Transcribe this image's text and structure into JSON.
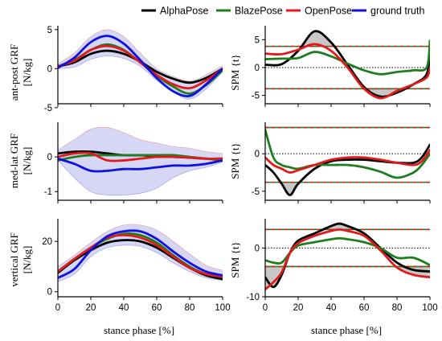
{
  "legend": [
    {
      "name": "AlphaPose",
      "color": "#000000"
    },
    {
      "name": "BlazePose",
      "color": "#1e7d1e"
    },
    {
      "name": "OpenPose",
      "color": "#e31a1c"
    },
    {
      "name": "ground truth",
      "color": "#1010e0"
    }
  ],
  "colors": {
    "alphapose": "#000000",
    "blazepose": "#1e7d1e",
    "openpose": "#e31a1c",
    "ground_truth": "#1010e0",
    "band": "#c8c8f2",
    "threshold_dash_1": "#1e7d1e",
    "threshold_dash_2": "#e31a1c",
    "zero_line": "#000000",
    "spm_fill": "#c8c8c8"
  },
  "xlabel": "stance phase [%]",
  "chart_data": [
    {
      "type": "line",
      "panel": "ant-post GRF",
      "ylabel_lines": [
        "ant-post GRF",
        "[N/kg]"
      ],
      "xlim": [
        0,
        100
      ],
      "ylim": [
        -4.5,
        5.5
      ],
      "xticks": [
        0,
        20,
        40,
        60,
        80,
        100
      ],
      "yticks": [
        -5,
        0,
        5
      ],
      "x": [
        0,
        10,
        20,
        30,
        40,
        50,
        60,
        70,
        80,
        90,
        100
      ],
      "series": [
        {
          "name": "AlphaPose",
          "values": [
            0.3,
            0.8,
            1.9,
            2.3,
            1.9,
            0.9,
            -0.4,
            -1.3,
            -1.8,
            -1.2,
            0
          ]
        },
        {
          "name": "BlazePose",
          "values": [
            0.3,
            1.1,
            2.4,
            3.1,
            2.4,
            0.8,
            -0.9,
            -2.3,
            -3.2,
            -2.1,
            -0.2
          ]
        },
        {
          "name": "OpenPose",
          "values": [
            0.3,
            1.0,
            2.4,
            2.9,
            2.3,
            0.8,
            -0.8,
            -2.0,
            -2.5,
            -1.5,
            0
          ]
        },
        {
          "name": "ground truth",
          "values": [
            0.1,
            1.4,
            3.4,
            4.2,
            3.2,
            1.1,
            -1.2,
            -2.9,
            -3.5,
            -2.0,
            0
          ]
        }
      ],
      "band": {
        "lower": [
          0.0,
          0.2,
          1.2,
          1.6,
          1.3,
          0.3,
          -1.5,
          -3.0,
          -3.9,
          -2.6,
          -0.4
        ],
        "upper": [
          0.6,
          2.0,
          4.1,
          5.0,
          4.1,
          2.0,
          0.0,
          -1.0,
          -1.6,
          -0.8,
          0.4
        ]
      }
    },
    {
      "type": "line",
      "panel": "SPM ant-post",
      "ylabel": "SPM {t}",
      "xlim": [
        0,
        100
      ],
      "ylim": [
        -6.5,
        7.5
      ],
      "xticks": [
        0,
        20,
        40,
        60,
        80,
        100
      ],
      "yticks": [
        -5,
        0,
        5
      ],
      "thresholds": [
        3.8,
        -3.8
      ],
      "x": [
        0,
        10,
        20,
        30,
        40,
        50,
        60,
        70,
        80,
        90,
        98,
        100
      ],
      "series": [
        {
          "name": "AlphaPose",
          "values": [
            0.5,
            0.6,
            3.0,
            6.5,
            4.5,
            0.5,
            -3.5,
            -5.2,
            -4.5,
            -3.0,
            -1.2,
            3.0
          ]
        },
        {
          "name": "BlazePose",
          "values": [
            1.5,
            1.6,
            1.7,
            2.8,
            2.0,
            0.7,
            -0.5,
            -1.2,
            -0.8,
            -0.5,
            0,
            4.8
          ]
        },
        {
          "name": "OpenPose",
          "values": [
            2.5,
            2.4,
            3.2,
            4.2,
            3.0,
            0,
            -3.8,
            -5.5,
            -4.2,
            -3.0,
            -1.8,
            0
          ]
        }
      ]
    },
    {
      "type": "line",
      "panel": "med-lat GRF",
      "ylabel_lines": [
        "med-lat GRF",
        "[N/kg]"
      ],
      "xlim": [
        0,
        100
      ],
      "ylim": [
        -1.25,
        1.0
      ],
      "xticks": [
        0,
        20,
        40,
        60,
        80,
        100
      ],
      "yticks": [
        -1,
        0
      ],
      "x": [
        0,
        10,
        20,
        30,
        40,
        50,
        60,
        70,
        80,
        90,
        100
      ],
      "series": [
        {
          "name": "AlphaPose",
          "values": [
            0.1,
            0.15,
            0.15,
            0.1,
            0.05,
            0.05,
            0.02,
            0.0,
            -0.02,
            -0.05,
            -0.05
          ]
        },
        {
          "name": "BlazePose",
          "values": [
            -0.1,
            0.0,
            0.05,
            0.05,
            0.05,
            0.05,
            0.05,
            0.05,
            0.0,
            -0.05,
            -0.1
          ]
        },
        {
          "name": "OpenPose",
          "values": [
            0.0,
            0.1,
            0.1,
            -0.1,
            -0.1,
            -0.05,
            0.0,
            0.0,
            -0.02,
            -0.05,
            -0.05
          ]
        },
        {
          "name": "ground truth",
          "values": [
            -0.05,
            -0.2,
            -0.4,
            -0.4,
            -0.35,
            -0.35,
            -0.3,
            -0.25,
            -0.25,
            -0.2,
            -0.1
          ]
        }
      ],
      "band": {
        "lower": [
          -0.1,
          -0.6,
          -1.0,
          -1.1,
          -1.1,
          -1.05,
          -0.9,
          -0.6,
          -0.4,
          -0.3,
          -0.15
        ],
        "upper": [
          0.2,
          0.5,
          0.8,
          0.85,
          0.7,
          0.5,
          0.4,
          0.3,
          0.25,
          0.15,
          0.1
        ]
      }
    },
    {
      "type": "line",
      "panel": "SPM med-lat",
      "ylabel": "SPM {t}",
      "xlim": [
        0,
        100
      ],
      "ylim": [
        -6.2,
        4.2
      ],
      "xticks": [
        0,
        20,
        40,
        60,
        80,
        100
      ],
      "yticks": [
        -5,
        0
      ],
      "thresholds": [
        3.5,
        -3.8
      ],
      "x": [
        0,
        5,
        10,
        15,
        20,
        30,
        40,
        50,
        60,
        70,
        80,
        90,
        95,
        100
      ],
      "series": [
        {
          "name": "AlphaPose",
          "values": [
            -1.5,
            -2.5,
            -4.0,
            -5.5,
            -4.0,
            -2.0,
            -1.0,
            -0.8,
            -0.8,
            -1.0,
            -1.2,
            -1.2,
            -0.5,
            1.2
          ]
        },
        {
          "name": "BlazePose",
          "values": [
            3.2,
            -0.5,
            -1.5,
            -1.8,
            -2.0,
            -1.5,
            -1.5,
            -1.5,
            -1.8,
            -2.4,
            -3.2,
            -2.5,
            -1.5,
            0
          ]
        },
        {
          "name": "OpenPose",
          "values": [
            -0.5,
            -1.5,
            -2.0,
            -2.5,
            -2.2,
            -1.5,
            -0.8,
            -0.5,
            -0.5,
            -0.8,
            -1.2,
            -1.5,
            -1.0,
            0.5
          ]
        }
      ]
    },
    {
      "type": "line",
      "panel": "vertical GRF",
      "ylabel_lines": [
        "vertical GRF",
        "[N/kg]"
      ],
      "xlim": [
        0,
        100
      ],
      "ylim": [
        -2,
        29
      ],
      "xticks": [
        0,
        20,
        40,
        60,
        80,
        100
      ],
      "yticks": [
        0,
        20
      ],
      "x": [
        0,
        10,
        20,
        30,
        40,
        50,
        60,
        70,
        80,
        90,
        100
      ],
      "series": [
        {
          "name": "AlphaPose",
          "values": [
            7.5,
            12.5,
            16.5,
            19.5,
            20.5,
            20.0,
            17.5,
            13.5,
            9.5,
            6.5,
            5.0
          ]
        },
        {
          "name": "BlazePose",
          "values": [
            8.0,
            13.0,
            17.5,
            21.0,
            23.0,
            22.5,
            19.5,
            14.5,
            10.0,
            7.0,
            6.0
          ]
        },
        {
          "name": "OpenPose",
          "values": [
            8.0,
            13.0,
            17.5,
            21.5,
            22.5,
            21.5,
            18.5,
            14.0,
            9.5,
            7.0,
            6.0
          ]
        },
        {
          "name": "ground truth",
          "values": [
            5.5,
            9.0,
            16.5,
            22.0,
            24.0,
            24.0,
            21.0,
            16.0,
            11.5,
            8.0,
            6.5
          ]
        }
      ],
      "band": {
        "lower": [
          4.0,
          7.0,
          14.0,
          17.5,
          18.5,
          18.0,
          15.5,
          11.5,
          8.0,
          5.5,
          4.5
        ],
        "upper": [
          10.0,
          14.5,
          19.5,
          24.0,
          26.5,
          26.5,
          24.5,
          20.0,
          15.0,
          10.5,
          8.5
        ]
      }
    },
    {
      "type": "line",
      "panel": "SPM vertical",
      "ylabel": "SPM {t}",
      "xlim": [
        0,
        100
      ],
      "ylim": [
        -10,
        6
      ],
      "xticks": [
        0,
        20,
        40,
        60,
        80,
        100
      ],
      "yticks": [
        -10,
        0
      ],
      "thresholds": [
        3.8,
        -3.8
      ],
      "x": [
        0,
        5,
        10,
        15,
        20,
        30,
        40,
        45,
        50,
        60,
        70,
        80,
        90,
        100
      ],
      "series": [
        {
          "name": "AlphaPose",
          "values": [
            -6.0,
            -8.0,
            -5.5,
            -1.0,
            1.5,
            3.0,
            4.5,
            5.0,
            4.5,
            3.0,
            0,
            -3.0,
            -4.5,
            -4.8
          ]
        },
        {
          "name": "BlazePose",
          "values": [
            -2.5,
            -3.0,
            -3.0,
            -1.0,
            0.5,
            1.2,
            1.8,
            2.0,
            1.8,
            1.2,
            0,
            -2.0,
            -2.0,
            -3.5
          ]
        },
        {
          "name": "OpenPose",
          "values": [
            -8.5,
            -7.0,
            -5.0,
            -1.0,
            1.0,
            2.5,
            3.5,
            3.8,
            3.5,
            2.5,
            -0.5,
            -4.0,
            -5.5,
            -6.0
          ]
        }
      ]
    }
  ]
}
